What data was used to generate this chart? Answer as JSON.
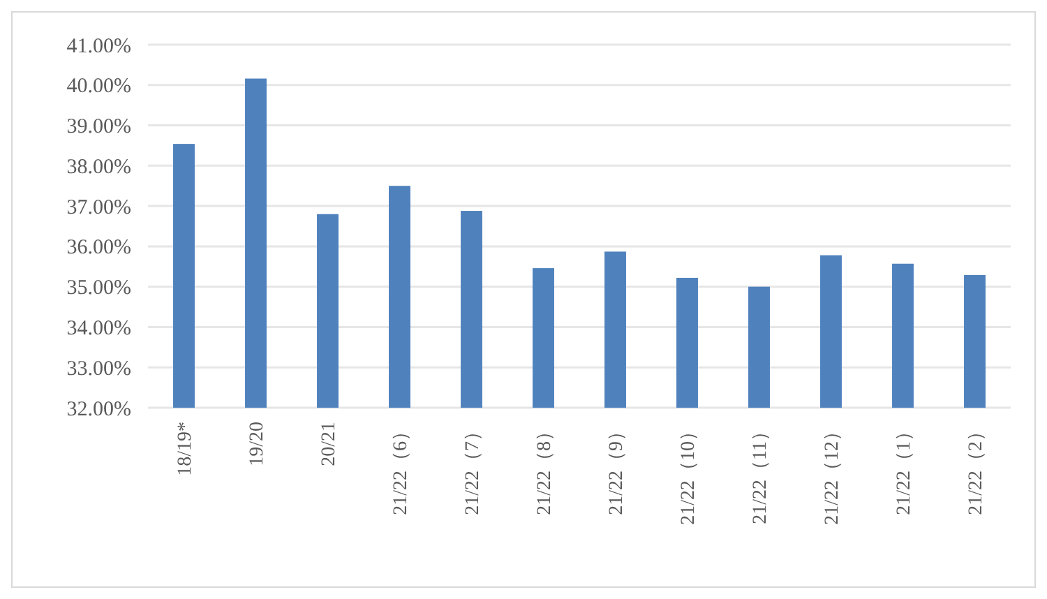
{
  "chart_data": {
    "type": "bar",
    "categories": [
      "18/19*",
      "19/20",
      "20/21",
      "21/22（6）",
      "21/22（7）",
      "21/22（8）",
      "21/22（9）",
      "21/22（10）",
      "21/22（11）",
      "21/22（12）",
      "21/22（1）",
      "21/22（2）"
    ],
    "values": [
      38.54,
      40.16,
      36.8,
      37.5,
      36.88,
      35.46,
      35.87,
      35.22,
      35.0,
      35.78,
      35.57,
      35.29
    ],
    "color": "#4f81bd",
    "ylim": [
      32,
      41
    ],
    "yticks": [
      {
        "value": 32,
        "label": "32.00%"
      },
      {
        "value": 33,
        "label": "33.00%"
      },
      {
        "value": 34,
        "label": "34.00%"
      },
      {
        "value": 35,
        "label": "35.00%"
      },
      {
        "value": 36,
        "label": "36.00%"
      },
      {
        "value": 37,
        "label": "37.00%"
      },
      {
        "value": 38,
        "label": "38.00%"
      },
      {
        "value": 39,
        "label": "39.00%"
      },
      {
        "value": 40,
        "label": "40.00%"
      },
      {
        "value": 41,
        "label": "41.00%"
      }
    ],
    "grid": "y"
  }
}
